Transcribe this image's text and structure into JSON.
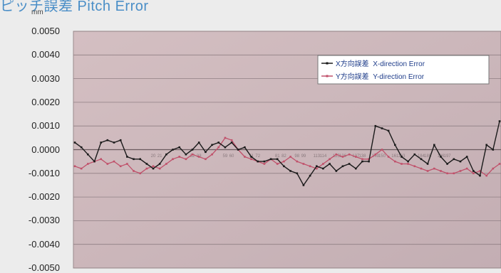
{
  "chart_data": {
    "type": "line",
    "title": "ピッチ誤差 Pitch Error",
    "ylabel": "mm",
    "xlabel": "",
    "ylim": [
      -0.005,
      0.005
    ],
    "yticks": [
      "0.0050",
      "0.0040",
      "0.0030",
      "0.0020",
      "0.0010",
      "0.0000",
      "-0.0010",
      "-0.0020",
      "-0.0030",
      "-0.0040",
      "-0.0050"
    ],
    "grid": true,
    "legend_position": "top-right",
    "x_count": 66,
    "series": [
      {
        "name": "X方向誤差  X-direction Error",
        "color": "#1a1a1a",
        "values": [
          0.0003,
          0.0001,
          -0.0002,
          -0.0005,
          0.0003,
          0.0004,
          0.0003,
          0.0004,
          -0.0003,
          -0.0004,
          -0.0004,
          -0.0006,
          -0.0008,
          -0.0006,
          -0.0002,
          0.0,
          0.0001,
          -0.0002,
          0.0,
          0.0003,
          -0.0001,
          0.0002,
          0.0003,
          0.0001,
          0.0003,
          0.0,
          0.0001,
          -0.0003,
          -0.0005,
          -0.0005,
          -0.0004,
          -0.0004,
          -0.0007,
          -0.0009,
          -0.001,
          -0.0015,
          -0.0011,
          -0.0007,
          -0.0008,
          -0.0006,
          -0.0009,
          -0.0007,
          -0.0006,
          -0.0008,
          -0.0005,
          -0.0005,
          0.001,
          0.0009,
          0.0008,
          0.0002,
          -0.0003,
          -0.0005,
          -0.0002,
          -0.0004,
          -0.0006,
          0.0002,
          -0.0003,
          -0.0006,
          -0.0004,
          -0.0005,
          -0.0003,
          -0.0009,
          -0.0011,
          0.0002,
          0.0,
          0.0012
        ]
      },
      {
        "name": "Y方向誤差  Y-direction Error",
        "color": "#c0506a",
        "values": [
          -0.0007,
          -0.0008,
          -0.0006,
          -0.0005,
          -0.0004,
          -0.0006,
          -0.0005,
          -0.0007,
          -0.0006,
          -0.0009,
          -0.001,
          -0.0008,
          -0.0007,
          -0.0008,
          -0.0006,
          -0.0004,
          -0.0003,
          -0.0004,
          -0.0002,
          -0.0003,
          -0.0004,
          -0.0002,
          0.0001,
          0.0005,
          0.0004,
          0.0,
          -0.0003,
          -0.0004,
          -0.0005,
          -0.0006,
          -0.0004,
          -0.0006,
          -0.0005,
          -0.0003,
          -0.0005,
          -0.0006,
          -0.0007,
          -0.0008,
          -0.0006,
          -0.0004,
          -0.0002,
          -0.0003,
          -0.0002,
          -0.0003,
          -0.0004,
          -0.0004,
          -0.0002,
          0.0,
          -0.0003,
          -0.0005,
          -0.0006,
          -0.0006,
          -0.0007,
          -0.0008,
          -0.0009,
          -0.0008,
          -0.0009,
          -0.001,
          -0.001,
          -0.0009,
          -0.0008,
          -0.001,
          -0.0009,
          -0.0011,
          -0.0008,
          -0.0006
        ]
      }
    ],
    "annotations": [
      "20",
      "21",
      "32",
      "33",
      "59",
      "60",
      "71",
      "72",
      "81",
      "82",
      "98",
      "99",
      "113",
      "114",
      "125",
      "126",
      "137",
      "138",
      "149",
      "150",
      "161",
      "163",
      "184",
      "185",
      "196",
      "197"
    ]
  }
}
